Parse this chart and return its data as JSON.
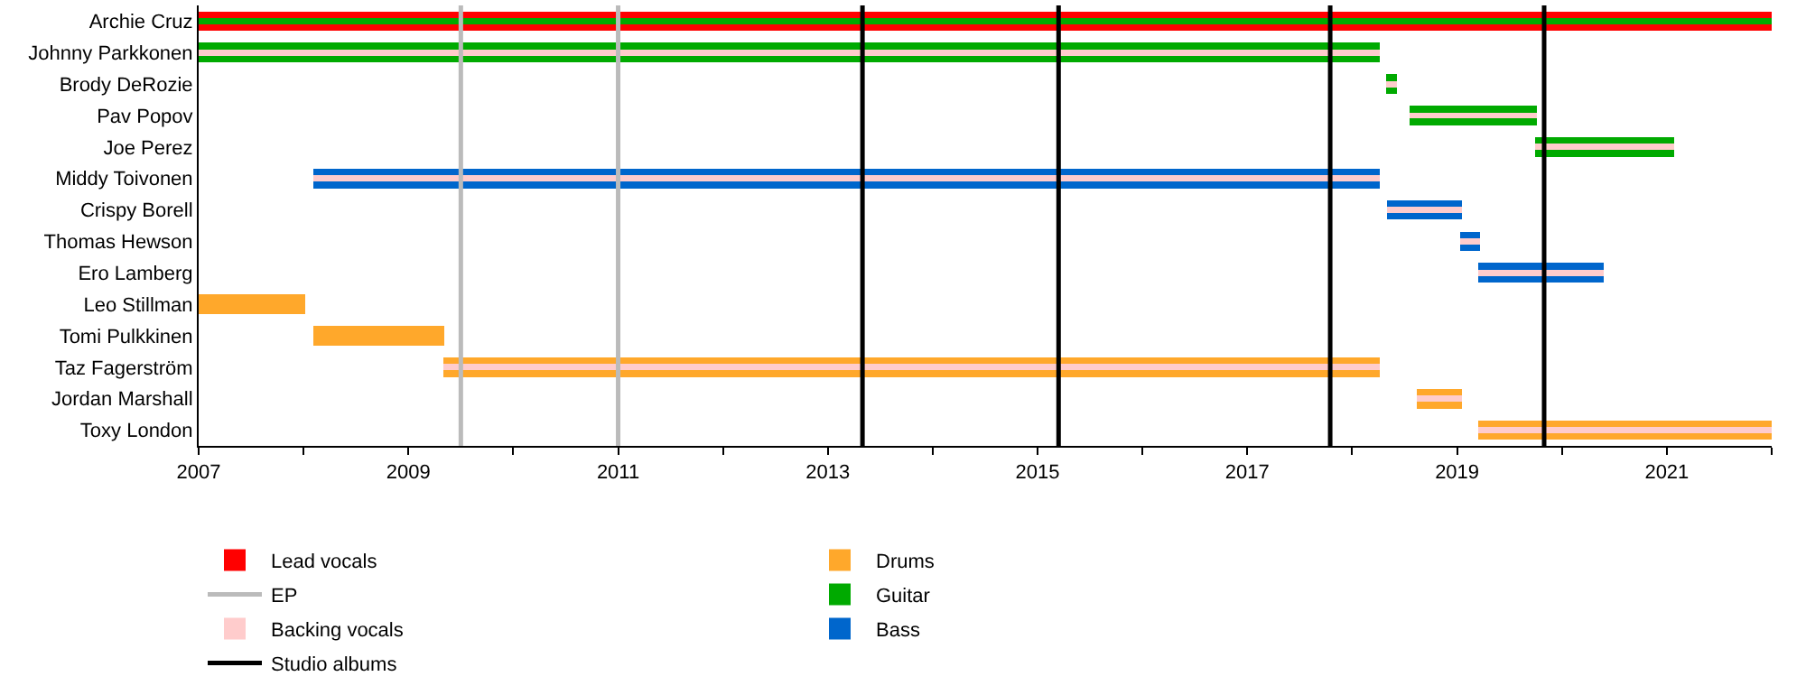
{
  "chart_data": {
    "type": "bar",
    "orientation": "horizontal",
    "categories": [
      "Archie Cruz",
      "Johnny Parkkonen",
      "Brody DeRozie",
      "Pav Popov",
      "Joe Perez",
      "Middy Toivonen",
      "Crispy Borell",
      "Thomas Hewson",
      "Ero Lamberg",
      "Leo Stillman",
      "Tomi Pulkkinen",
      "Taz Fagerström",
      "Jordan Marshall",
      "Toxy London"
    ],
    "series": [
      {
        "name": "Lead vocals",
        "color": "#ff0000",
        "base": [
          2007,
          null,
          null,
          null,
          null,
          null,
          null,
          null,
          null,
          null,
          null,
          null,
          null,
          null
        ],
        "values": [
          15,
          null,
          null,
          null,
          null,
          null,
          null,
          null,
          null,
          null,
          null,
          null,
          null,
          null
        ]
      },
      {
        "name": "Guitar",
        "color": "#00aa00",
        "base": [
          2007,
          2007,
          2018.32,
          2018.55,
          2019.74,
          null,
          null,
          null,
          null,
          null,
          null,
          null,
          null,
          null
        ],
        "values": [
          15,
          11.26,
          0.11,
          1.21,
          1.33,
          null,
          null,
          null,
          null,
          null,
          null,
          null,
          null,
          null
        ]
      },
      {
        "name": "Bass",
        "color": "#0066cc",
        "base": [
          null,
          null,
          null,
          null,
          null,
          2008.09,
          2018.33,
          2019.03,
          2019.2,
          null,
          null,
          null,
          null,
          null
        ],
        "values": [
          null,
          null,
          null,
          null,
          null,
          10.17,
          0.72,
          0.19,
          1.2,
          null,
          null,
          null,
          null,
          null
        ]
      },
      {
        "name": "Drums",
        "color": "#ffa82b",
        "base": [
          null,
          null,
          null,
          null,
          null,
          null,
          null,
          null,
          null,
          2007,
          2008.09,
          2009.33,
          2018.62,
          2019.2
        ],
        "values": [
          null,
          null,
          null,
          null,
          null,
          null,
          null,
          null,
          null,
          1.02,
          1.25,
          8.93,
          0.43,
          2.8
        ]
      },
      {
        "name": "Backing vocals",
        "color": "#ffcccc",
        "base": [
          null,
          2007,
          2018.32,
          2018.55,
          2019.74,
          2008.09,
          2018.33,
          2019.03,
          2019.2,
          null,
          null,
          2009.33,
          2018.62,
          2019.2
        ],
        "values": [
          null,
          11.26,
          0.11,
          1.21,
          1.33,
          10.17,
          0.72,
          0.19,
          1.2,
          null,
          null,
          8.93,
          0.43,
          2.8
        ]
      }
    ],
    "ref_lines": [
      {
        "axis": "x",
        "value": 2013.33,
        "label": "Studio albums",
        "color": "#000000"
      },
      {
        "axis": "x",
        "value": 2015.2,
        "color": "#000000"
      },
      {
        "axis": "x",
        "value": 2017.79,
        "color": "#000000"
      },
      {
        "axis": "x",
        "value": 2019.83,
        "color": "#000000"
      },
      {
        "axis": "x",
        "value": 2009.5,
        "label": "EP",
        "color": "#bbbbbb"
      },
      {
        "axis": "x",
        "value": 2011.0,
        "color": "#bbbbbb"
      }
    ],
    "xlim": [
      2007,
      2022
    ],
    "xticks": [
      2007,
      {
        "value": 2008,
        "label": null
      },
      2009,
      {
        "value": 2010,
        "label": null
      },
      2011,
      {
        "value": 2012,
        "label": null
      },
      2013,
      {
        "value": 2014,
        "label": null
      },
      2015,
      {
        "value": 2016,
        "label": null
      },
      2017,
      {
        "value": 2018,
        "label": null
      },
      2019,
      {
        "value": 2020,
        "label": null
      },
      2021,
      {
        "value": 2022,
        "label": null
      }
    ],
    "grid": false,
    "legend": "bottom"
  }
}
